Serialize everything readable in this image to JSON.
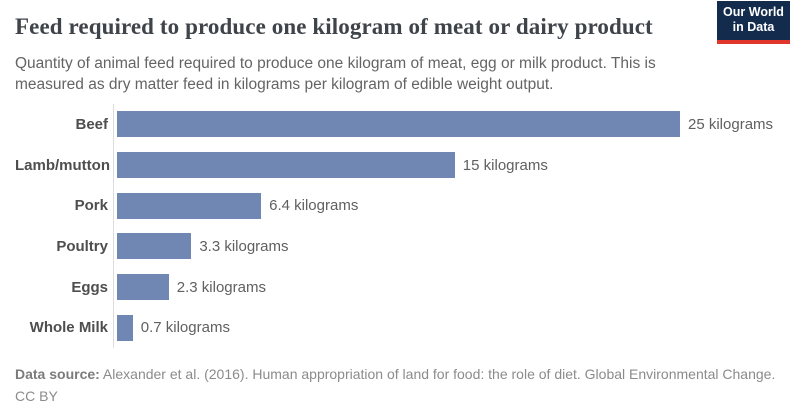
{
  "header": {
    "title": "Feed required to produce one kilogram of meat or dairy product",
    "subtitle": "Quantity of animal feed required to produce one kilogram of meat, egg or milk product. This is measured as dry matter feed in kilograms per kilogram of edible weight output.",
    "logo": {
      "line1": "Our World",
      "line2": "in Data",
      "bg_color": "#132c4e",
      "accent_color": "#e0362c"
    }
  },
  "chart_data": {
    "type": "bar",
    "orientation": "horizontal",
    "title": "Feed required to produce one kilogram of meat or dairy product",
    "categories": [
      "Beef",
      "Lamb/mutton",
      "Pork",
      "Poultry",
      "Eggs",
      "Whole Milk"
    ],
    "values": [
      25,
      15,
      6.4,
      3.3,
      2.3,
      0.7
    ],
    "value_labels": [
      "25 kilograms",
      "15 kilograms",
      "6.4 kilograms",
      "3.3 kilograms",
      "2.3 kilograms",
      "0.7 kilograms"
    ],
    "unit": "kilograms",
    "xlabel": "",
    "ylabel": "",
    "xlim": [
      0,
      25
    ],
    "grid": false,
    "legend": false,
    "bar_color": "#6f87b2",
    "axis_line_color": "#dcdcdc"
  },
  "footer": {
    "source_label": "Data source:",
    "source_text": " Alexander et al. (2016). Human appropriation of land for food: the role of diet. Global Environmental Change.",
    "license": "CC BY"
  }
}
